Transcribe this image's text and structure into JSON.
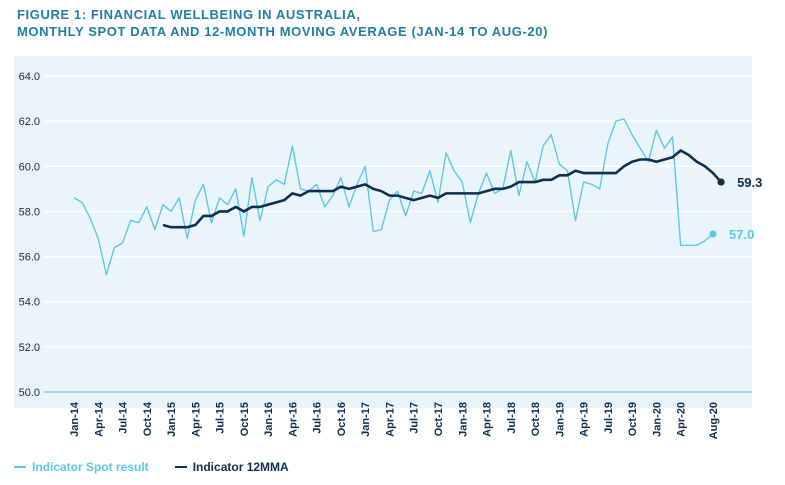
{
  "title_line1": "FIGURE 1: FINANCIAL WELLBEING IN AUSTRALIA,",
  "title_line2": "MONTHLY SPOT DATA AND 12-MONTH MOVING AVERAGE (JAN-14 TO AUG-20)",
  "colors": {
    "title": "#1f7fa6",
    "spot": "#5cc8e6",
    "mma": "#0e2f4d",
    "plot_bg": "#eaf5fb",
    "grid": "#ffffff"
  },
  "chart_data": {
    "type": "line",
    "title": "FIGURE 1: FINANCIAL WELLBEING IN AUSTRALIA, MONTHLY SPOT DATA AND 12-MONTH MOVING AVERAGE (JAN-14 TO AUG-20)",
    "xlabel": "",
    "ylabel": "",
    "ylim": [
      50,
      64
    ],
    "yticks": [
      "50.0",
      "52.0",
      "54.0",
      "56.0",
      "58.0",
      "60.0",
      "62.0",
      "64.0"
    ],
    "x_start": "Jan-14",
    "x_end": "Aug-20",
    "xtick_labels": [
      "Jan-14",
      "Apr-14",
      "Jul-14",
      "Oct-14",
      "Jan-15",
      "Apr-15",
      "Jul-15",
      "Oct-15",
      "Jan-16",
      "Apr-16",
      "Jul-16",
      "Oct-16",
      "Jan-17",
      "Apr-17",
      "Jul-17",
      "Oct-17",
      "Jan-18",
      "Apr-18",
      "Jul-18",
      "Oct-18",
      "Jan-19",
      "Apr-19",
      "Jul-19",
      "Oct-19",
      "Jan-20",
      "Apr-20",
      "Aug-20"
    ],
    "legend_position": "bottom-left",
    "grid": true,
    "series": [
      {
        "name": "Indicator Spot result",
        "color": "#5cc8e6",
        "start": "Jan-14",
        "end_label": "57.0",
        "values": [
          58.6,
          58.4,
          57.7,
          56.8,
          55.2,
          56.4,
          56.6,
          57.6,
          57.5,
          58.2,
          57.2,
          58.3,
          58.0,
          58.6,
          56.8,
          58.5,
          59.2,
          57.5,
          58.6,
          58.3,
          59.0,
          56.9,
          59.5,
          57.6,
          59.1,
          59.4,
          59.2,
          60.9,
          59.0,
          58.9,
          59.2,
          58.2,
          58.7,
          59.5,
          58.2,
          59.2,
          60.0,
          57.1,
          57.2,
          58.5,
          58.9,
          57.8,
          58.9,
          58.8,
          59.8,
          58.4,
          60.6,
          59.8,
          59.3,
          57.5,
          58.8,
          59.7,
          58.8,
          59.0,
          60.7,
          58.7,
          60.2,
          59.3,
          60.9,
          61.4,
          60.1,
          59.8,
          57.6,
          59.3,
          59.2,
          59.0,
          61.0,
          62.0,
          62.1,
          61.4,
          60.8,
          60.2,
          61.6,
          60.8,
          61.3,
          56.5,
          56.5,
          56.5,
          56.7,
          57.0
        ]
      },
      {
        "name": "Indicator 12MMA",
        "color": "#0e2f4d",
        "start": "Dec-14",
        "end_label": "59.3",
        "values": [
          57.4,
          57.3,
          57.3,
          57.3,
          57.4,
          57.8,
          57.8,
          58.0,
          58.0,
          58.2,
          58.0,
          58.2,
          58.2,
          58.3,
          58.4,
          58.5,
          58.8,
          58.7,
          58.9,
          58.9,
          58.9,
          58.9,
          59.1,
          59.0,
          59.1,
          59.2,
          59.0,
          58.9,
          58.7,
          58.7,
          58.6,
          58.5,
          58.6,
          58.7,
          58.6,
          58.8,
          58.8,
          58.8,
          58.8,
          58.8,
          58.9,
          59.0,
          59.0,
          59.1,
          59.3,
          59.3,
          59.3,
          59.4,
          59.4,
          59.6,
          59.6,
          59.8,
          59.7,
          59.7,
          59.7,
          59.7,
          59.7,
          60.0,
          60.2,
          60.3,
          60.3,
          60.2,
          60.3,
          60.4,
          60.7,
          60.5,
          60.2,
          60.0,
          59.7,
          59.3
        ]
      }
    ]
  }
}
